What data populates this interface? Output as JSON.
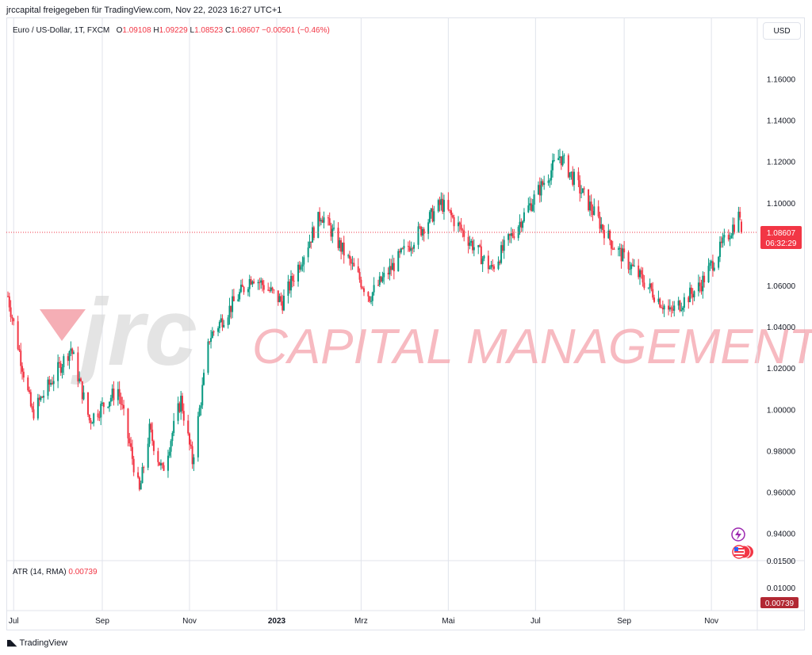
{
  "header": {
    "text": "jrccapital freigegeben für TradingView.com, Nov 22, 2023 16:27 UTC+1"
  },
  "legend": {
    "symbol": "Euro / US-Dollar, 1T, FXCM",
    "open_label": "O",
    "open": "1.09108",
    "high_label": "H",
    "high": "1.09229",
    "low_label": "L",
    "low": "1.08523",
    "close_label": "C",
    "close": "1.08607",
    "change": "−0.00501 (−0.46%)"
  },
  "currency_button": "USD",
  "watermark": {
    "logo_text": "jrc",
    "tagline": "CAPITAL MANAGEMENT"
  },
  "price_marker": {
    "value": "1.08607",
    "countdown": "06:32:29"
  },
  "atr": {
    "label": "ATR (14, RMA)",
    "value": "0.00739",
    "badge": "0.00739",
    "scale_labels": [
      "0.01500",
      "0.01000"
    ]
  },
  "footer": {
    "brand": "TradingView"
  },
  "colors": {
    "up": "#089981",
    "down": "#f23645",
    "grid": "#e0e3eb",
    "price_line": "#f23645",
    "watermark": "#f4a6ae"
  },
  "icons": [
    "lightning-icon",
    "us-flag-icon"
  ],
  "chart_data": {
    "type": "candlestick",
    "title": "Euro / US-Dollar, 1T, FXCM",
    "x_axis_labels": [
      "Jul",
      "Sep",
      "Nov",
      "2023",
      "Mrz",
      "Mai",
      "Jul",
      "Sep",
      "Nov"
    ],
    "y_tick_labels": [
      "1.16000",
      "1.14000",
      "1.12000",
      "1.10000",
      "1.06000",
      "1.04000",
      "1.02000",
      "1.00000",
      "0.98000",
      "0.96000",
      "0.94000"
    ],
    "ylim": [
      0.932,
      1.174
    ],
    "grid": true,
    "approx_daily_close_path": [
      {
        "date": "2022-06-27",
        "close": 1.055
      },
      {
        "date": "2022-07-14",
        "close": 0.998
      },
      {
        "date": "2022-08-10",
        "close": 1.03
      },
      {
        "date": "2022-08-23",
        "close": 0.995
      },
      {
        "date": "2022-09-12",
        "close": 1.01
      },
      {
        "date": "2022-09-27",
        "close": 0.96
      },
      {
        "date": "2022-10-04",
        "close": 0.99
      },
      {
        "date": "2022-10-13",
        "close": 0.97
      },
      {
        "date": "2022-10-26",
        "close": 1.005
      },
      {
        "date": "2022-11-03",
        "close": 0.975
      },
      {
        "date": "2022-11-15",
        "close": 1.035
      },
      {
        "date": "2022-12-15",
        "close": 1.065
      },
      {
        "date": "2023-01-05",
        "close": 1.052
      },
      {
        "date": "2023-02-01",
        "close": 1.095
      },
      {
        "date": "2023-03-07",
        "close": 1.055
      },
      {
        "date": "2023-04-26",
        "close": 1.1
      },
      {
        "date": "2023-05-31",
        "close": 1.068
      },
      {
        "date": "2023-07-18",
        "close": 1.123
      },
      {
        "date": "2023-08-24",
        "close": 1.08
      },
      {
        "date": "2023-10-03",
        "close": 1.047
      },
      {
        "date": "2023-10-24",
        "close": 1.06
      },
      {
        "date": "2023-11-21",
        "close": 1.095
      },
      {
        "date": "2023-11-22",
        "close": 1.08607
      }
    ]
  }
}
